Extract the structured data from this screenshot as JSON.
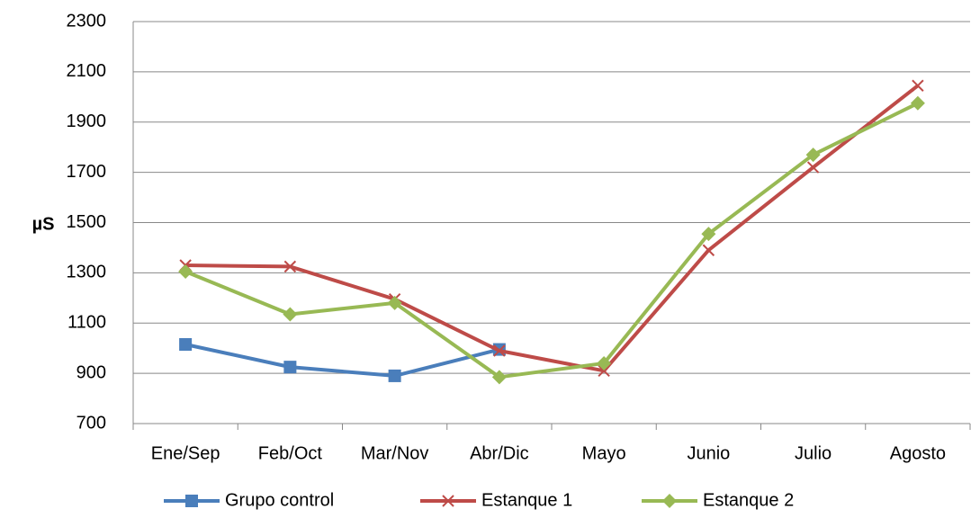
{
  "chart_data": {
    "type": "line",
    "y_label": "µS",
    "categories": [
      "Ene/Sep",
      "Feb/Oct",
      "Mar/Nov",
      "Abr/Dic",
      "Mayo",
      "Junio",
      "Julio",
      "Agosto"
    ],
    "series": [
      {
        "name": "Grupo control",
        "color": "#4a7ebb",
        "marker": "square",
        "values": [
          1015,
          925,
          890,
          995,
          null,
          null,
          null,
          null
        ]
      },
      {
        "name": "Estanque 1",
        "color": "#be4b48",
        "marker": "x",
        "values": [
          1330,
          1325,
          1195,
          990,
          910,
          1390,
          1720,
          2045
        ]
      },
      {
        "name": "Estanque 2",
        "color": "#98b954",
        "marker": "diamond",
        "values": [
          1305,
          1135,
          1180,
          885,
          940,
          1455,
          1770,
          1975
        ]
      }
    ],
    "ylim": [
      700,
      2300
    ],
    "yticks": [
      700,
      900,
      1100,
      1300,
      1500,
      1700,
      1900,
      2100,
      2300
    ],
    "grid": true
  }
}
